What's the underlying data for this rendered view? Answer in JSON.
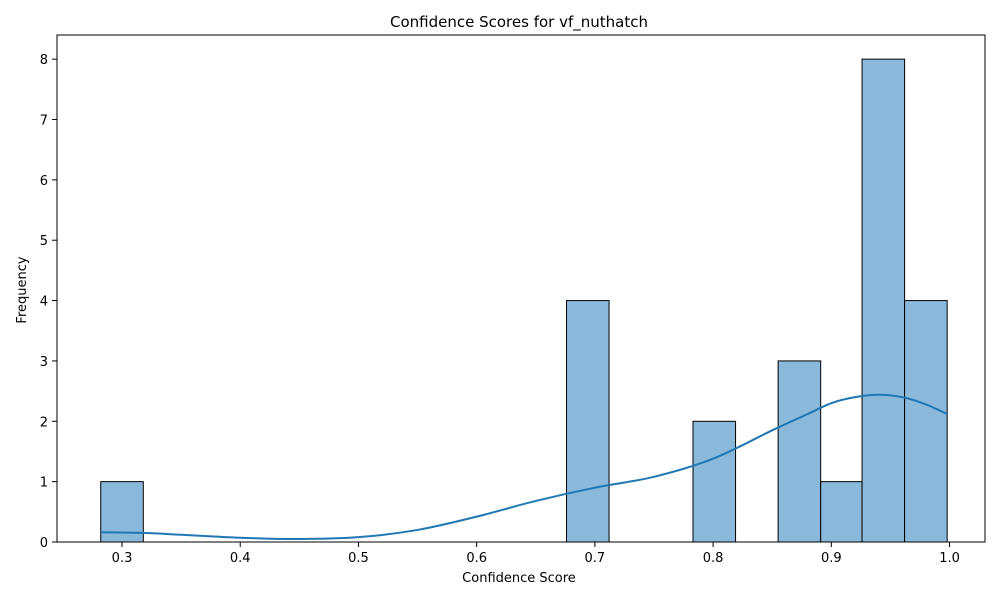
{
  "chart_data": {
    "type": "bar",
    "title": "Confidence Scores for vf_nuthatch",
    "xlabel": "Confidence Score",
    "ylabel": "Frequency",
    "xlim": [
      0.245,
      1.03
    ],
    "ylim": [
      0,
      8.4
    ],
    "xticks": [
      0.3,
      0.4,
      0.5,
      0.6,
      0.7,
      0.8,
      0.9,
      1.0
    ],
    "xtick_labels": [
      "0.3",
      "0.4",
      "0.5",
      "0.6",
      "0.7",
      "0.8",
      "0.9",
      "1.0"
    ],
    "yticks": [
      0,
      1,
      2,
      3,
      4,
      5,
      6,
      7,
      8
    ],
    "ytick_labels": [
      "0",
      "1",
      "2",
      "3",
      "4",
      "5",
      "6",
      "7",
      "8"
    ],
    "grid": false,
    "bar_color": "#8bb9db",
    "bar_edge_color": "#000000",
    "bins": [
      {
        "x0": 0.282,
        "x1": 0.318,
        "count": 1
      },
      {
        "x0": 0.318,
        "x1": 0.354,
        "count": 0
      },
      {
        "x0": 0.354,
        "x1": 0.389,
        "count": 0
      },
      {
        "x0": 0.389,
        "x1": 0.425,
        "count": 0
      },
      {
        "x0": 0.425,
        "x1": 0.461,
        "count": 0
      },
      {
        "x0": 0.461,
        "x1": 0.497,
        "count": 0
      },
      {
        "x0": 0.497,
        "x1": 0.533,
        "count": 0
      },
      {
        "x0": 0.533,
        "x1": 0.568,
        "count": 0
      },
      {
        "x0": 0.568,
        "x1": 0.604,
        "count": 0
      },
      {
        "x0": 0.604,
        "x1": 0.64,
        "count": 0
      },
      {
        "x0": 0.64,
        "x1": 0.676,
        "count": 0
      },
      {
        "x0": 0.676,
        "x1": 0.712,
        "count": 4
      },
      {
        "x0": 0.712,
        "x1": 0.748,
        "count": 0
      },
      {
        "x0": 0.748,
        "x1": 0.783,
        "count": 0
      },
      {
        "x0": 0.783,
        "x1": 0.819,
        "count": 2
      },
      {
        "x0": 0.819,
        "x1": 0.855,
        "count": 0
      },
      {
        "x0": 0.855,
        "x1": 0.891,
        "count": 3
      },
      {
        "x0": 0.891,
        "x1": 0.926,
        "count": 1
      },
      {
        "x0": 0.926,
        "x1": 0.962,
        "count": 8
      },
      {
        "x0": 0.962,
        "x1": 0.998,
        "count": 4
      }
    ],
    "kde": {
      "color": "#1f77b4",
      "x": [
        0.282,
        0.32,
        0.35,
        0.4,
        0.45,
        0.5,
        0.55,
        0.6,
        0.65,
        0.7,
        0.75,
        0.8,
        0.85,
        0.88,
        0.9,
        0.92,
        0.94,
        0.96,
        0.98,
        0.998
      ],
      "y": [
        0.16,
        0.15,
        0.12,
        0.07,
        0.05,
        0.08,
        0.2,
        0.42,
        0.68,
        0.9,
        1.08,
        1.38,
        1.85,
        2.12,
        2.3,
        2.4,
        2.44,
        2.4,
        2.28,
        2.12
      ]
    }
  }
}
